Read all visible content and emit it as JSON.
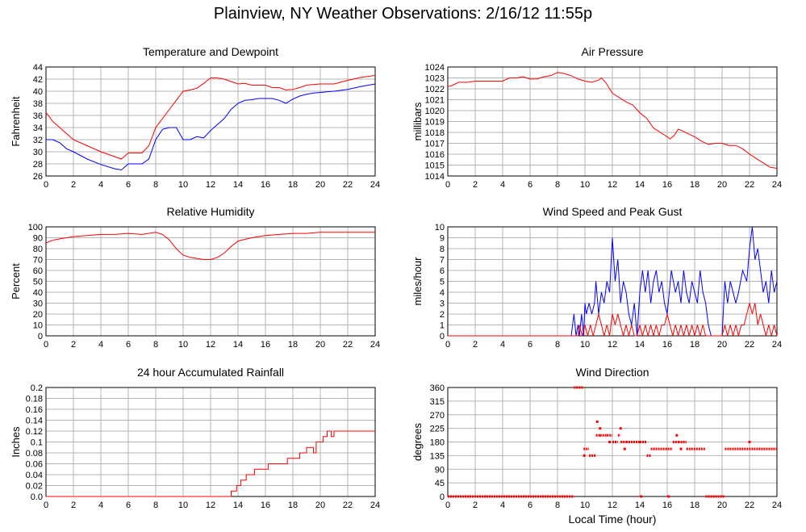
{
  "title": "Plainview, NY Weather Observations: 2/16/12 11:55p",
  "x_axis_label": "Local Time (hour)",
  "chart_data": [
    {
      "id": "temperature",
      "type": "line",
      "title": "Temperature and Dewpoint",
      "xlabel": "",
      "ylabel": "Fahrenheit",
      "xlim": [
        0,
        24
      ],
      "ylim": [
        26,
        44
      ],
      "xticks": [
        0,
        2,
        4,
        6,
        8,
        10,
        12,
        14,
        16,
        18,
        20,
        22,
        24
      ],
      "yticks": [
        26,
        28,
        30,
        32,
        34,
        36,
        38,
        40,
        42,
        44
      ],
      "grid": true,
      "series": [
        {
          "color": "#ff0000",
          "x": [
            0,
            0.5,
            1,
            1.5,
            2,
            3,
            4,
            5,
            5.5,
            6,
            7,
            7.5,
            8,
            8.5,
            9,
            9.5,
            10,
            10.5,
            11,
            11.5,
            12,
            12.5,
            13,
            13.5,
            14,
            14.5,
            15,
            16,
            16.5,
            17,
            17.5,
            18,
            18.5,
            19,
            20,
            21,
            22,
            23,
            24
          ],
          "y": [
            36.5,
            35,
            34,
            33,
            32,
            31,
            30,
            29.2,
            28.8,
            29.8,
            29.8,
            31,
            34,
            35.5,
            37,
            38.5,
            40,
            40.2,
            40.5,
            41.3,
            42.2,
            42.2,
            42,
            41.6,
            41.2,
            41.3,
            41,
            41,
            40.6,
            40.6,
            40.2,
            40.3,
            40.6,
            41,
            41.2,
            41.2,
            41.8,
            42.3,
            42.6
          ]
        },
        {
          "color": "#0000ff",
          "x": [
            0,
            0.5,
            1,
            1.5,
            2,
            3,
            4,
            5,
            5.5,
            6,
            6.5,
            7,
            7.5,
            8,
            8.5,
            9,
            9.5,
            10,
            10.5,
            11,
            11.5,
            12,
            12.5,
            13,
            13.5,
            14,
            14.5,
            15,
            15.5,
            16,
            16.5,
            17,
            17.5,
            18,
            18.5,
            19,
            19.5,
            20,
            21,
            22,
            23,
            24
          ],
          "y": [
            32,
            32,
            31.5,
            30.5,
            30,
            28.8,
            27.9,
            27.2,
            27,
            28,
            28,
            28,
            28.8,
            32,
            33.7,
            34,
            34,
            32,
            32,
            32.5,
            32.3,
            33.5,
            34.5,
            35.5,
            37,
            38,
            38.5,
            38.6,
            38.8,
            38.8,
            38.8,
            38.5,
            38,
            38.7,
            39.2,
            39.5,
            39.7,
            39.8,
            40,
            40.3,
            40.8,
            41.2
          ]
        }
      ]
    },
    {
      "id": "pressure",
      "type": "line",
      "title": "Air Pressure",
      "xlabel": "",
      "ylabel": "millibars",
      "xlim": [
        0,
        24
      ],
      "ylim": [
        1014,
        1024
      ],
      "xticks": [
        0,
        2,
        4,
        6,
        8,
        10,
        12,
        14,
        16,
        18,
        20,
        22,
        24
      ],
      "yticks": [
        1014,
        1015,
        1016,
        1017,
        1018,
        1019,
        1020,
        1021,
        1022,
        1023,
        1024
      ],
      "grid": true,
      "series": [
        {
          "color": "#ff0000",
          "x": [
            0,
            0.3,
            0.8,
            1.5,
            2,
            3,
            4,
            4.5,
            5,
            5.5,
            6,
            6.5,
            7,
            7.5,
            8,
            8.5,
            9,
            9.5,
            10,
            10.5,
            11,
            11.2,
            11.5,
            12,
            12.5,
            13,
            13.5,
            14,
            14.5,
            15,
            15.5,
            16,
            16.2,
            16.5,
            16.8,
            17,
            17.5,
            18,
            18.5,
            19,
            19.5,
            20,
            20.5,
            21,
            21.5,
            22,
            22.5,
            23,
            23.5,
            24
          ],
          "y": [
            1022.2,
            1022.3,
            1022.6,
            1022.6,
            1022.7,
            1022.7,
            1022.7,
            1023,
            1023,
            1023.1,
            1022.9,
            1022.9,
            1023.1,
            1023.2,
            1023.5,
            1023.4,
            1023.2,
            1022.9,
            1022.7,
            1022.6,
            1022.8,
            1023,
            1022.6,
            1021.6,
            1021.2,
            1020.8,
            1020.5,
            1019.8,
            1019.3,
            1018.4,
            1018,
            1017.6,
            1017.4,
            1017.7,
            1018.3,
            1018.2,
            1017.9,
            1017.6,
            1017.2,
            1016.9,
            1017,
            1017,
            1016.8,
            1016.8,
            1016.5,
            1016,
            1015.6,
            1015.2,
            1014.8,
            1014.7
          ]
        }
      ]
    },
    {
      "id": "humidity",
      "type": "line",
      "title": "Relative Humidity",
      "xlabel": "",
      "ylabel": "Percent",
      "xlim": [
        0,
        24
      ],
      "ylim": [
        0,
        100
      ],
      "xticks": [
        0,
        2,
        4,
        6,
        8,
        10,
        12,
        14,
        16,
        18,
        20,
        22,
        24
      ],
      "yticks": [
        0,
        10,
        20,
        30,
        40,
        50,
        60,
        70,
        80,
        90,
        100
      ],
      "grid": true,
      "series": [
        {
          "color": "#ff0000",
          "x": [
            0,
            0.3,
            0.6,
            1,
            2,
            3,
            4,
            5,
            6,
            7,
            8,
            8.5,
            9,
            9.5,
            10,
            10.5,
            11,
            11.5,
            12,
            12.5,
            13,
            13.5,
            14,
            15,
            16,
            17,
            18,
            19,
            20,
            21,
            22,
            23,
            24
          ],
          "y": [
            85,
            87,
            88,
            89,
            91,
            92,
            93,
            93,
            94,
            93,
            95,
            93,
            88,
            80,
            74,
            72,
            71,
            70,
            70,
            72,
            76,
            82,
            87,
            90,
            92,
            93,
            94,
            94,
            95,
            95,
            95,
            95,
            95
          ]
        }
      ]
    },
    {
      "id": "wind-speed",
      "type": "line",
      "title": "Wind Speed and Peak Gust",
      "xlabel": "",
      "ylabel": "miles/hour",
      "xlim": [
        0,
        24
      ],
      "ylim": [
        0,
        10
      ],
      "xticks": [
        0,
        2,
        4,
        6,
        8,
        10,
        12,
        14,
        16,
        18,
        20,
        22,
        24
      ],
      "yticks": [
        0,
        1,
        2,
        3,
        4,
        5,
        6,
        7,
        8,
        9,
        10
      ],
      "grid": true,
      "series": [
        {
          "color": "#0000ff",
          "x": [
            0,
            9.0,
            9.2,
            9.35,
            9.5,
            9.6,
            9.75,
            9.9,
            10.0,
            10.1,
            10.3,
            10.5,
            10.7,
            10.8,
            11.0,
            11.2,
            11.4,
            11.6,
            11.8,
            12.0,
            12.2,
            12.4,
            12.6,
            12.8,
            13.0,
            13.2,
            13.4,
            13.6,
            13.8,
            14.0,
            14.2,
            14.4,
            14.6,
            14.8,
            15.0,
            15.2,
            15.4,
            15.6,
            15.8,
            16.0,
            16.3,
            16.6,
            16.8,
            17.0,
            17.2,
            17.4,
            17.6,
            17.8,
            18.0,
            18.2,
            18.4,
            18.6,
            18.8,
            19.0,
            19.2,
            19.4,
            19.6,
            19.8,
            20.0,
            20.2,
            20.4,
            20.6,
            20.8,
            21.0,
            21.2,
            21.5,
            21.8,
            22.0,
            22.2,
            22.4,
            22.6,
            22.8,
            23.0,
            23.2,
            23.4,
            23.6,
            23.8,
            24.0
          ],
          "y": [
            0,
            0,
            2,
            0,
            1,
            0,
            2,
            0,
            3,
            2,
            3,
            2,
            3,
            5,
            2,
            4,
            3,
            5,
            4,
            9,
            5,
            7,
            3,
            5,
            4,
            2,
            1,
            3,
            0,
            4,
            6,
            4,
            6,
            3,
            5,
            6,
            4,
            5,
            3,
            2,
            6,
            4,
            5,
            3,
            6,
            4,
            3,
            5,
            4,
            3,
            6,
            4,
            3,
            1,
            0,
            0,
            0,
            0,
            0,
            5,
            3,
            5,
            4,
            3,
            4,
            6,
            5,
            8,
            10,
            7,
            8,
            6,
            4,
            5,
            3,
            6,
            4,
            5
          ]
        },
        {
          "color": "#ff0000",
          "x": [
            0,
            9.5,
            9.6,
            9.8,
            10.0,
            10.2,
            10.4,
            10.6,
            10.8,
            11.0,
            11.2,
            11.4,
            11.6,
            11.8,
            12.0,
            12.2,
            12.4,
            12.6,
            12.8,
            13.0,
            13.2,
            13.4,
            13.6,
            13.8,
            14.0,
            14.2,
            14.4,
            14.6,
            14.8,
            15.0,
            15.2,
            15.4,
            15.6,
            15.8,
            16.0,
            16.2,
            16.4,
            16.6,
            16.8,
            17.0,
            17.2,
            17.4,
            17.6,
            17.8,
            18.0,
            18.2,
            18.4,
            18.6,
            18.8,
            19.0,
            20.0,
            20.2,
            20.4,
            20.6,
            20.8,
            21.0,
            21.2,
            21.4,
            21.6,
            21.8,
            22.0,
            22.2,
            22.4,
            22.6,
            22.8,
            23.0,
            23.2,
            23.4,
            23.6,
            23.8,
            24.0
          ],
          "y": [
            0,
            0,
            1,
            0,
            1,
            0,
            1,
            0,
            1,
            2,
            1,
            0,
            1,
            0,
            2,
            1,
            2,
            1,
            0,
            1,
            0,
            1,
            0,
            0,
            1,
            0,
            1,
            0,
            1,
            0,
            1,
            0,
            1,
            1,
            2,
            1,
            0,
            1,
            0,
            1,
            0,
            1,
            0,
            1,
            0,
            1,
            0,
            1,
            0,
            0,
            0,
            1,
            0,
            1,
            0,
            1,
            0,
            1,
            1,
            2,
            3,
            2,
            3,
            1,
            2,
            1,
            0,
            1,
            0,
            1,
            0
          ]
        }
      ]
    },
    {
      "id": "rainfall",
      "type": "line",
      "title": "24 hour Accumulated Rainfall",
      "xlabel": "",
      "ylabel": "Inches",
      "xlim": [
        0,
        24
      ],
      "ylim": [
        0,
        0.2
      ],
      "xticks": [
        0,
        2,
        4,
        6,
        8,
        10,
        12,
        14,
        16,
        18,
        20,
        22,
        24
      ],
      "yticks": [
        0.0,
        0.02,
        0.04,
        0.06,
        0.08,
        0.1,
        0.12,
        0.14,
        0.16,
        0.18,
        0.2
      ],
      "ytick_labels": [
        "0.0",
        "0.02",
        "0.04",
        "0.06",
        "0.08",
        "0.1",
        "0.12",
        "0.14",
        "0.16",
        "0.18",
        "0.2"
      ],
      "grid": true,
      "series": [
        {
          "color": "#ff0000",
          "x": [
            0,
            13.5,
            13.5,
            13.9,
            13.9,
            14.2,
            14.2,
            14.6,
            14.6,
            15.2,
            15.2,
            16.2,
            16.2,
            17.6,
            17.6,
            18.5,
            18.5,
            19.0,
            19.0,
            19.5,
            19.5,
            19.7,
            19.7,
            20.2,
            20.2,
            20.5,
            20.5,
            20.8,
            20.8,
            21.0,
            21.0,
            24
          ],
          "y": [
            0,
            0,
            0.01,
            0.01,
            0.02,
            0.02,
            0.03,
            0.03,
            0.04,
            0.04,
            0.05,
            0.05,
            0.06,
            0.06,
            0.07,
            0.07,
            0.08,
            0.08,
            0.09,
            0.09,
            0.08,
            0.08,
            0.1,
            0.1,
            0.11,
            0.11,
            0.12,
            0.12,
            0.11,
            0.11,
            0.12,
            0.12
          ]
        }
      ]
    },
    {
      "id": "wind-direction",
      "type": "scatter",
      "title": "Wind Direction",
      "xlabel": "Local Time (hour)",
      "ylabel": "degrees",
      "xlim": [
        0,
        24
      ],
      "ylim": [
        0,
        360
      ],
      "xticks": [
        0,
        2,
        4,
        6,
        8,
        10,
        12,
        14,
        16,
        18,
        20,
        22,
        24
      ],
      "yticks": [
        0,
        45,
        90,
        135,
        180,
        225,
        270,
        315,
        360
      ],
      "grid": true,
      "series": [
        {
          "color": "#ff0000",
          "segments": [
            {
              "x0": 0,
              "x1": 9.2,
              "y": 0
            },
            {
              "x0": 9.2,
              "x1": 9.9,
              "y": 360
            },
            {
              "x0": 9.9,
              "x1": 10.3,
              "y": 157
            },
            {
              "x0": 10.3,
              "x1": 10.8,
              "y": 135
            },
            {
              "x0": 10.8,
              "x1": 11.1,
              "y": 202
            },
            {
              "x0": 11.1,
              "x1": 11.6,
              "y": 202
            },
            {
              "x0": 11.6,
              "x1": 12.0,
              "y": 202
            },
            {
              "x0": 12.0,
              "x1": 12.4,
              "y": 180
            },
            {
              "x0": 12.4,
              "x1": 12.6,
              "y": 202
            },
            {
              "x0": 12.6,
              "x1": 13.0,
              "y": 180
            },
            {
              "x0": 13.0,
              "x1": 14.0,
              "y": 180
            },
            {
              "x0": 14.0,
              "x1": 14.5,
              "y": 180
            },
            {
              "x0": 14.5,
              "x1": 14.8,
              "y": 135
            },
            {
              "x0": 14.8,
              "x1": 16.4,
              "y": 157
            },
            {
              "x0": 16.4,
              "x1": 16.8,
              "y": 180
            },
            {
              "x0": 16.8,
              "x1": 17.4,
              "y": 180
            },
            {
              "x0": 17.4,
              "x1": 18.8,
              "y": 157
            },
            {
              "x0": 18.8,
              "x1": 20.2,
              "y": 0
            },
            {
              "x0": 20.2,
              "x1": 24,
              "y": 157
            }
          ],
          "points": [
            [
              10.9,
              247
            ],
            [
              11.1,
              225
            ],
            [
              12.6,
              225
            ],
            [
              12.9,
              157
            ],
            [
              11.8,
              180
            ],
            [
              14.1,
              0
            ],
            [
              16.1,
              0
            ],
            [
              16.7,
              202
            ],
            [
              17.0,
              157
            ],
            [
              22.0,
              180
            ],
            [
              9.95,
              135
            ]
          ]
        }
      ]
    }
  ]
}
